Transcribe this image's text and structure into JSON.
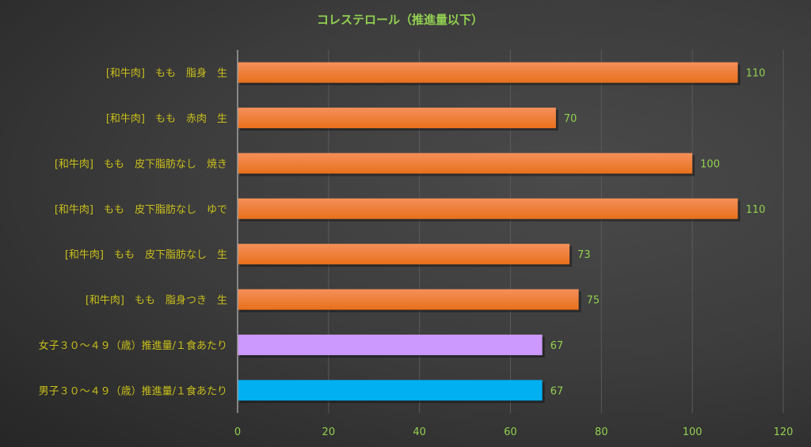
{
  "chart_data": {
    "type": "bar",
    "orientation": "horizontal",
    "title": "コレステロール（推進量以下）",
    "xlabel": "",
    "ylabel": "",
    "xlim": [
      0,
      120
    ],
    "x_ticks": [
      0,
      20,
      40,
      60,
      80,
      100,
      120
    ],
    "grid": true,
    "legend": "none",
    "categories": [
      "[和牛肉]　もも　脂身　生",
      "[和牛肉]　もも　赤肉　生",
      "[和牛肉]　もも　皮下脂肪なし　焼き",
      "[和牛肉]　もも　皮下脂肪なし　ゆで",
      "[和牛肉]　もも　皮下脂肪なし　生",
      "[和牛肉]　もも　脂身つき　生",
      "女子３０～４９（歳）推進量/１食あたり",
      "男子３０～４９（歳）推進量/１食あたり"
    ],
    "values": [
      110,
      70,
      100,
      110,
      73,
      75,
      67,
      67
    ],
    "colors": [
      "#f07a26",
      "#f07a26",
      "#f07a26",
      "#f07a26",
      "#f07a26",
      "#f07a26",
      "#cc99ff",
      "#00b0f0"
    ]
  }
}
